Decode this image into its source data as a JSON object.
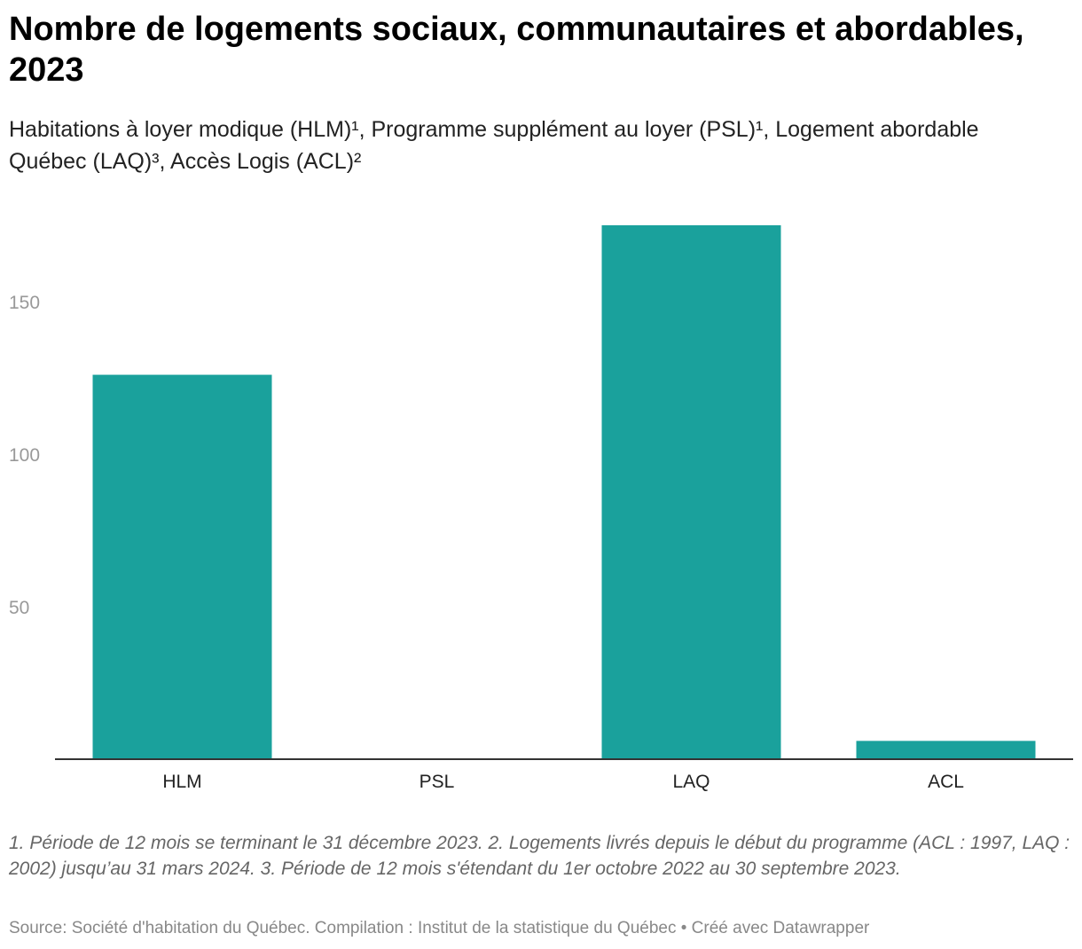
{
  "title": "Nombre de logements sociaux, communautaires et abordables, 2023",
  "subtitle": "Habitations à loyer modique (HLM)¹, Programme supplément au loyer (PSL)¹, Logement abordable Québec (LAQ)³, Accès Logis (ACL)²",
  "notes": "1. Période de 12 mois se terminant le 31 décembre 2023. 2. Logements livrés depuis le début du programme (ACL : 1997, LAQ : 2002) jusqu’au 31 mars 2024. 3. Période de 12 mois s'étendant du 1er octobre 2022 au 30 septembre 2023.",
  "source": "Source: Société d'habitation du Québec. Compilation : Institut de la statistique du Québec • Créé avec Datawrapper",
  "colors": {
    "bar": "#1aa19c",
    "axis": "#333333",
    "tick_label": "#999999"
  },
  "chart_data": {
    "type": "bar",
    "categories": [
      "HLM",
      "PSL",
      "LAQ",
      "ACL"
    ],
    "values": [
      126,
      0,
      175,
      6
    ],
    "yticks": [
      50,
      100,
      150
    ],
    "ylim": [
      0,
      175
    ],
    "grid": false
  }
}
